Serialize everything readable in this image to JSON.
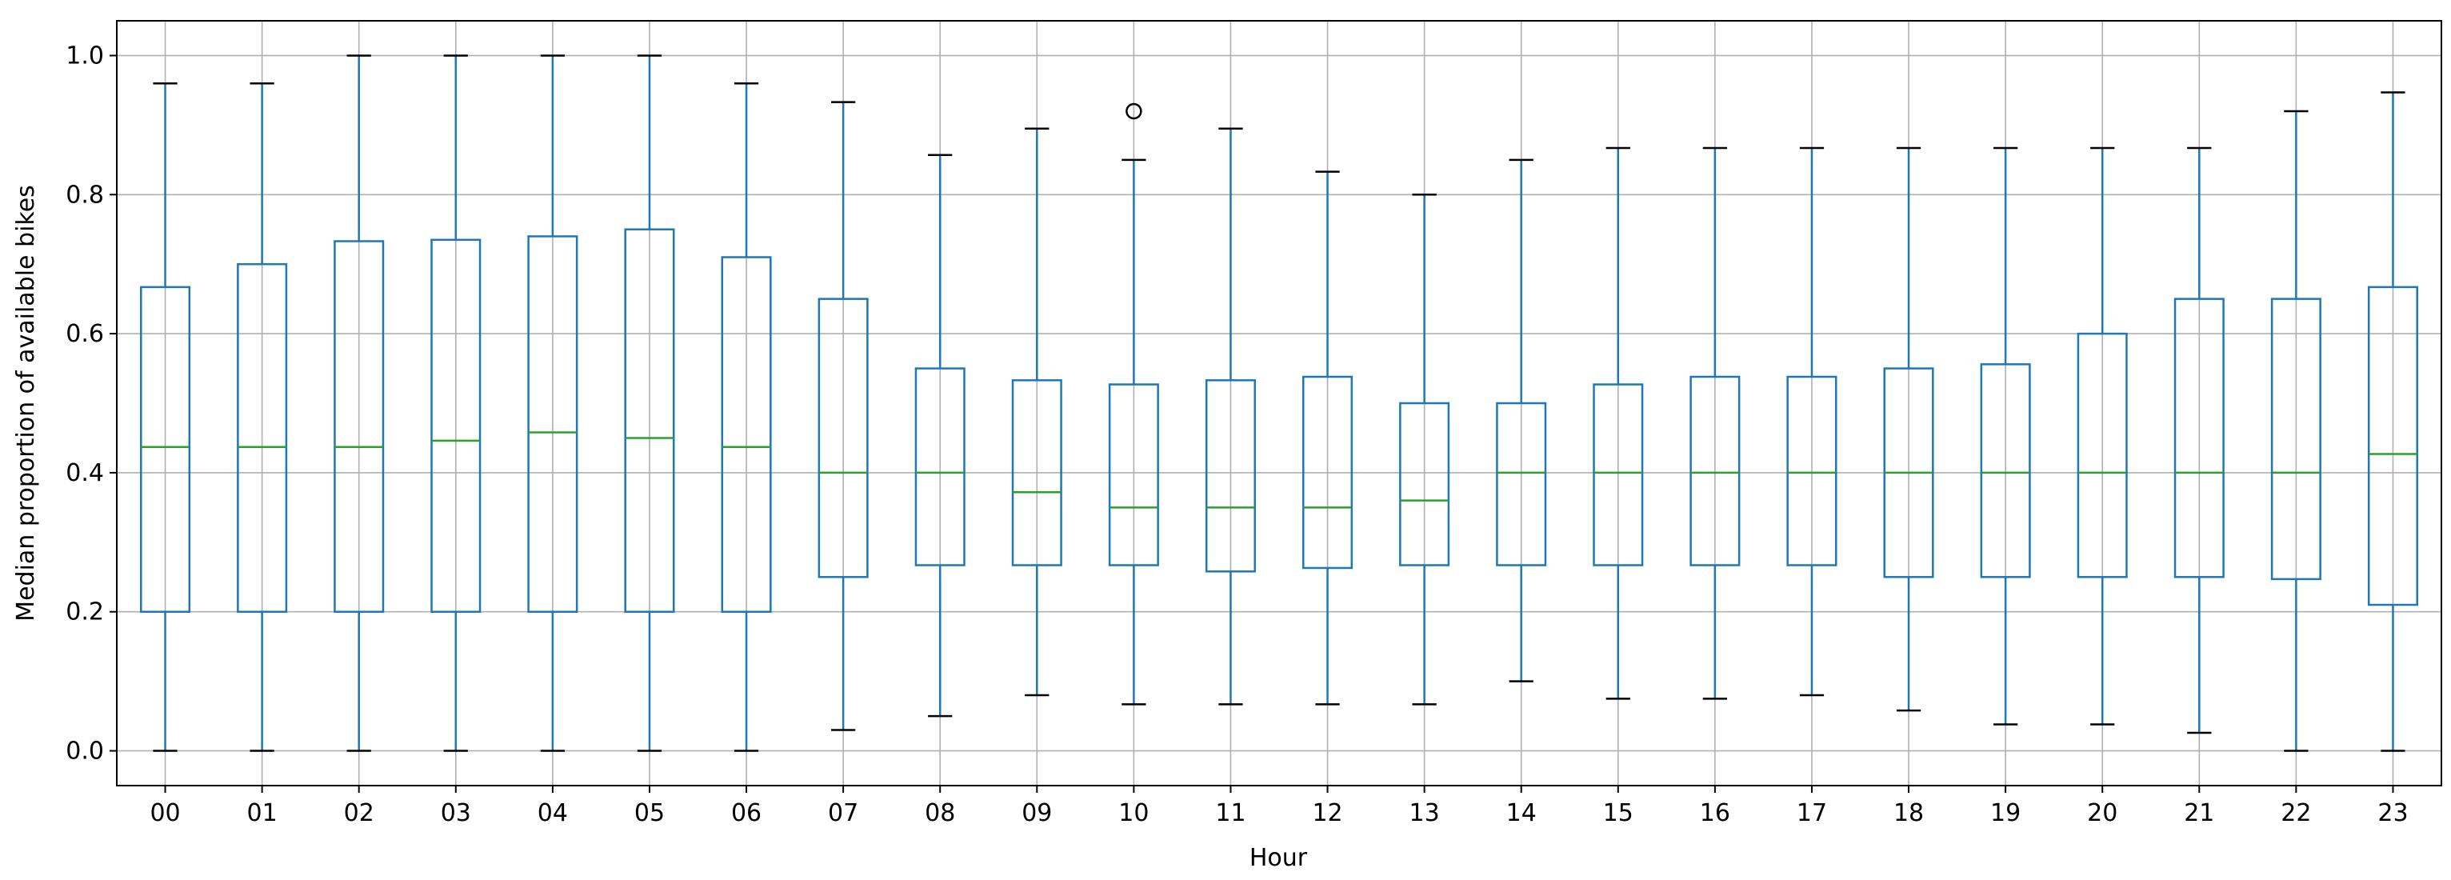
{
  "chart_data": {
    "type": "boxplot",
    "title": "",
    "xlabel": "Hour",
    "ylabel": "Median proportion of available bikes",
    "categories": [
      "00",
      "01",
      "02",
      "03",
      "04",
      "05",
      "06",
      "07",
      "08",
      "09",
      "10",
      "11",
      "12",
      "13",
      "14",
      "15",
      "16",
      "17",
      "18",
      "19",
      "20",
      "21",
      "22",
      "23"
    ],
    "ylim": [
      -0.05,
      1.05
    ],
    "yticks": [
      0.0,
      0.2,
      0.4,
      0.6,
      0.8,
      1.0
    ],
    "ytick_labels": [
      "0.0",
      "0.2",
      "0.4",
      "0.6",
      "0.8",
      "1.0"
    ],
    "grid": true,
    "legend": "none",
    "colors": {
      "box": "#1f77b4",
      "median": "#2ca02c",
      "cap": "#000000",
      "grid": "#b0b0b0",
      "flier": "#000000"
    },
    "boxes": [
      {
        "hour": "00",
        "whislo": 0.0,
        "q1": 0.2,
        "med": 0.437,
        "q3": 0.667,
        "whishi": 0.96,
        "fliers": []
      },
      {
        "hour": "01",
        "whislo": 0.0,
        "q1": 0.2,
        "med": 0.437,
        "q3": 0.7,
        "whishi": 0.96,
        "fliers": []
      },
      {
        "hour": "02",
        "whislo": 0.0,
        "q1": 0.2,
        "med": 0.437,
        "q3": 0.733,
        "whishi": 1.0,
        "fliers": []
      },
      {
        "hour": "03",
        "whislo": 0.0,
        "q1": 0.2,
        "med": 0.446,
        "q3": 0.735,
        "whishi": 1.0,
        "fliers": []
      },
      {
        "hour": "04",
        "whislo": 0.0,
        "q1": 0.2,
        "med": 0.458,
        "q3": 0.74,
        "whishi": 1.0,
        "fliers": []
      },
      {
        "hour": "05",
        "whislo": 0.0,
        "q1": 0.2,
        "med": 0.45,
        "q3": 0.75,
        "whishi": 1.0,
        "fliers": []
      },
      {
        "hour": "06",
        "whislo": 0.0,
        "q1": 0.2,
        "med": 0.437,
        "q3": 0.71,
        "whishi": 0.96,
        "fliers": []
      },
      {
        "hour": "07",
        "whislo": 0.03,
        "q1": 0.25,
        "med": 0.4,
        "q3": 0.65,
        "whishi": 0.933,
        "fliers": []
      },
      {
        "hour": "08",
        "whislo": 0.05,
        "q1": 0.267,
        "med": 0.4,
        "q3": 0.55,
        "whishi": 0.857,
        "fliers": []
      },
      {
        "hour": "09",
        "whislo": 0.08,
        "q1": 0.267,
        "med": 0.372,
        "q3": 0.533,
        "whishi": 0.895,
        "fliers": []
      },
      {
        "hour": "10",
        "whislo": 0.067,
        "q1": 0.267,
        "med": 0.35,
        "q3": 0.527,
        "whishi": 0.85,
        "fliers": [
          0.92
        ]
      },
      {
        "hour": "11",
        "whislo": 0.067,
        "q1": 0.258,
        "med": 0.35,
        "q3": 0.533,
        "whishi": 0.895,
        "fliers": []
      },
      {
        "hour": "12",
        "whislo": 0.067,
        "q1": 0.263,
        "med": 0.35,
        "q3": 0.538,
        "whishi": 0.833,
        "fliers": []
      },
      {
        "hour": "13",
        "whislo": 0.067,
        "q1": 0.267,
        "med": 0.36,
        "q3": 0.5,
        "whishi": 0.8,
        "fliers": []
      },
      {
        "hour": "14",
        "whislo": 0.1,
        "q1": 0.267,
        "med": 0.4,
        "q3": 0.5,
        "whishi": 0.85,
        "fliers": []
      },
      {
        "hour": "15",
        "whislo": 0.075,
        "q1": 0.267,
        "med": 0.4,
        "q3": 0.527,
        "whishi": 0.867,
        "fliers": []
      },
      {
        "hour": "16",
        "whislo": 0.075,
        "q1": 0.267,
        "med": 0.4,
        "q3": 0.538,
        "whishi": 0.867,
        "fliers": []
      },
      {
        "hour": "17",
        "whislo": 0.08,
        "q1": 0.267,
        "med": 0.4,
        "q3": 0.538,
        "whishi": 0.867,
        "fliers": []
      },
      {
        "hour": "18",
        "whislo": 0.058,
        "q1": 0.25,
        "med": 0.4,
        "q3": 0.55,
        "whishi": 0.867,
        "fliers": []
      },
      {
        "hour": "19",
        "whislo": 0.038,
        "q1": 0.25,
        "med": 0.4,
        "q3": 0.556,
        "whishi": 0.867,
        "fliers": []
      },
      {
        "hour": "20",
        "whislo": 0.038,
        "q1": 0.25,
        "med": 0.4,
        "q3": 0.6,
        "whishi": 0.867,
        "fliers": []
      },
      {
        "hour": "21",
        "whislo": 0.026,
        "q1": 0.25,
        "med": 0.4,
        "q3": 0.65,
        "whishi": 0.867,
        "fliers": []
      },
      {
        "hour": "22",
        "whislo": 0.0,
        "q1": 0.247,
        "med": 0.4,
        "q3": 0.65,
        "whishi": 0.92,
        "fliers": []
      },
      {
        "hour": "23",
        "whislo": 0.0,
        "q1": 0.21,
        "med": 0.427,
        "q3": 0.667,
        "whishi": 0.947,
        "fliers": []
      }
    ]
  }
}
